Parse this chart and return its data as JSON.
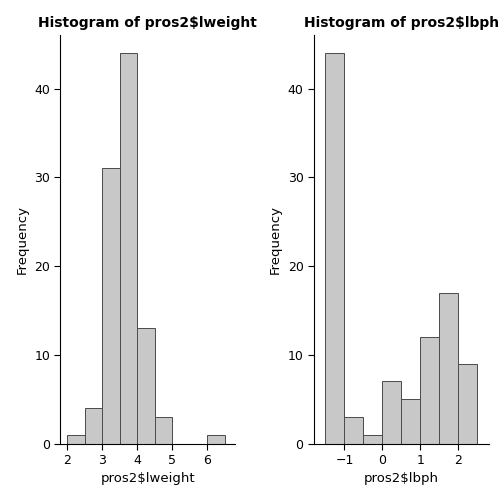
{
  "lweight": {
    "title": "Histogram of pros2$lweight",
    "xlabel": "pros2$lweight",
    "ylabel": "Frequency",
    "bar_edges": [
      2.0,
      2.5,
      3.0,
      3.5,
      4.0,
      4.5,
      5.0,
      5.5,
      6.0,
      6.5
    ],
    "bar_heights": [
      1,
      4,
      31,
      44,
      13,
      3,
      0,
      0,
      1
    ],
    "xlim": [
      1.8,
      6.8
    ],
    "ylim": [
      0,
      46
    ],
    "yticks": [
      0,
      10,
      20,
      30,
      40
    ],
    "xticks": [
      2,
      3,
      4,
      5,
      6
    ]
  },
  "lbph": {
    "title": "Histogram of pros2$lbph",
    "xlabel": "pros2$lbph",
    "ylabel": "Frequency",
    "bar_edges": [
      -1.5,
      -1.0,
      -0.5,
      0.0,
      0.5,
      1.0,
      1.5,
      2.0,
      2.5
    ],
    "bar_heights": [
      44,
      3,
      1,
      7,
      5,
      12,
      17,
      9
    ],
    "xlim": [
      -1.8,
      2.8
    ],
    "ylim": [
      0,
      46
    ],
    "yticks": [
      0,
      10,
      20,
      30,
      40
    ],
    "xticks": [
      -1,
      0,
      1,
      2
    ]
  },
  "bar_color": "#c8c8c8",
  "bar_edgecolor": "#4a4a4a",
  "bg_color": "#ffffff",
  "title_fontsize": 10,
  "label_fontsize": 9.5,
  "tick_fontsize": 9
}
